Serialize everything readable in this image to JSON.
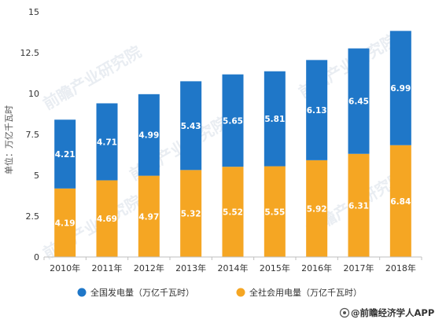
{
  "chart_data": {
    "type": "bar",
    "stacked": true,
    "categories": [
      "2010年",
      "2011年",
      "2012年",
      "2013年",
      "2014年",
      "2015年",
      "2016年",
      "2017年",
      "2018年"
    ],
    "series": [
      {
        "name": "全社会用电量（万亿千瓦时）",
        "color": "#f5a623",
        "values": [
          4.19,
          4.69,
          4.97,
          5.32,
          5.52,
          5.55,
          5.92,
          6.31,
          6.84
        ]
      },
      {
        "name": "全国发电量（万亿千瓦时）",
        "color": "#1f77c8",
        "values": [
          4.21,
          4.71,
          4.99,
          5.43,
          5.65,
          5.81,
          6.13,
          6.45,
          6.99
        ]
      }
    ],
    "ylabel": "单位：万亿千瓦时",
    "ylim": [
      0,
      15
    ],
    "yticks": [
      "0",
      "2.5",
      "5",
      "7.5",
      "10",
      "12.5",
      "15"
    ],
    "ytick_values": [
      0,
      2.5,
      5,
      7.5,
      10,
      12.5,
      15
    ],
    "grid": false,
    "legend_position": "bottom"
  },
  "watermark": "前瞻产业研究院",
  "source": "@前瞻经济学人APP"
}
